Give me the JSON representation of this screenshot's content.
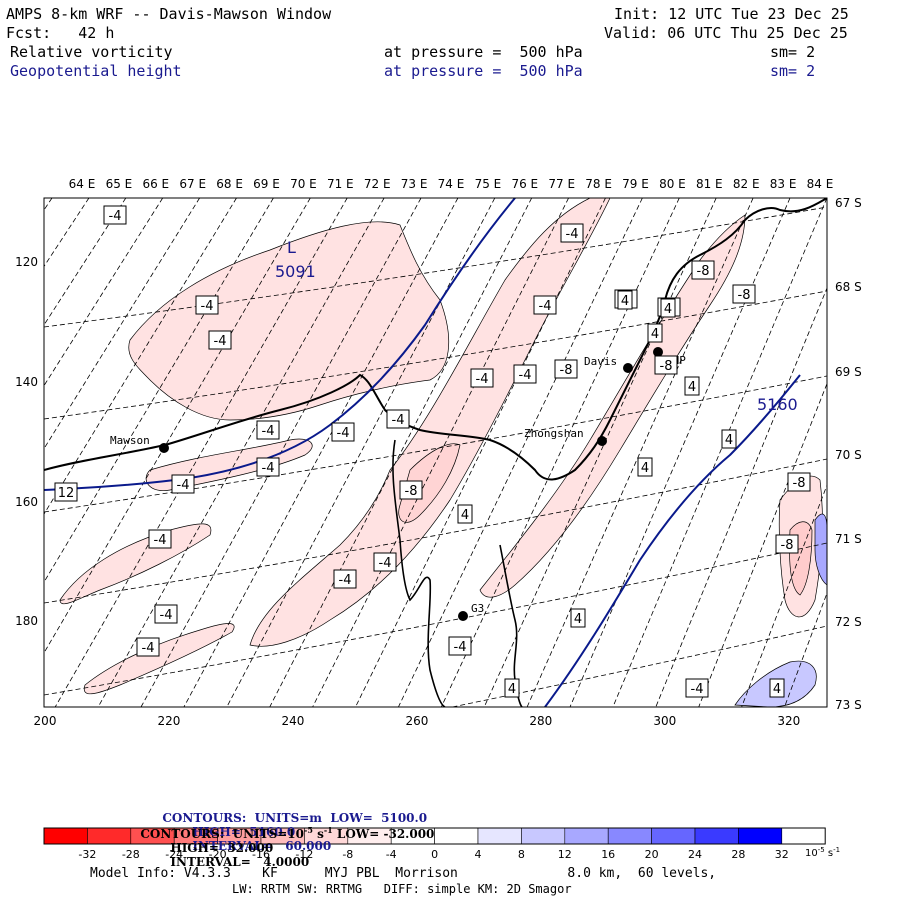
{
  "header": {
    "title": "AMPS 8-km WRF -- Davis-Mawson Window",
    "init": "Init: 12 UTC Tue 23 Dec 25",
    "forecast": "Fcst:   42 h",
    "valid": "Valid: 06 UTC Thu 25 Dec 25",
    "field1": {
      "name": "Relative vorticity",
      "pressure": "at pressure =  500 hPa",
      "sm": "sm= 2"
    },
    "field2": {
      "name": "Geopotential height",
      "pressure": "at pressure =  500 hPa",
      "sm": "sm= 2"
    }
  },
  "colors": {
    "height_contour": "#0a1a8c",
    "coast": "#000000",
    "grid": "#000000"
  },
  "map": {
    "lon_labels": [
      "64 E",
      "65 E",
      "66 E",
      "67 E",
      "68 E",
      "69 E",
      "70 E",
      "71 E",
      "72 E",
      "73 E",
      "74 E",
      "75 E",
      "76 E",
      "77 E",
      "78 E",
      "79 E",
      "80 E",
      "81 E",
      "82 E",
      "83 E",
      "84 E"
    ],
    "lat_labels": [
      "67 S",
      "68 S",
      "69 S",
      "70 S",
      "71 S",
      "72 S",
      "73 S"
    ],
    "x_ticks": [
      "200",
      "220",
      "240",
      "260",
      "280",
      "300",
      "320"
    ],
    "y_ticks": [
      "120",
      "140",
      "160",
      "180"
    ],
    "stations": [
      "Mawson",
      "Davis",
      "Zhongshan",
      "G3",
      "VHP"
    ],
    "height_labels": [
      "5091",
      "5160"
    ],
    "low_marker": "L",
    "vorticity_labels": [
      "-4",
      "-4",
      "-4",
      "-4",
      "-4",
      "-4",
      "-4",
      "-4",
      "-4",
      "-4",
      "-4",
      "-4",
      "-4",
      "-4",
      "-4",
      "-4",
      "-4",
      "-4",
      "-4",
      "-4",
      "-8",
      "-8",
      "-8",
      "-8",
      "-8",
      "-8",
      "-8",
      "-8",
      "4",
      "4",
      "4",
      "4",
      "4",
      "4",
      "4",
      "4",
      "4",
      "4",
      "12"
    ]
  },
  "footer": {
    "contours1": {
      "label": "CONTOURS:  UNITS=m  LOW=  5100.0",
      "high": "HIGH=  5160.0",
      "interval": "INTERVAL=   60.000"
    },
    "contours2": {
      "label": "CONTOURS:  UNITS=10",
      "exp": "-5",
      "unit_tail": " s",
      "unit_exp": "-1",
      "low": " LOW= -32.000",
      "high": "HIGH=  32.000",
      "interval": "INTERVAL=   4.0000"
    },
    "colorbar": {
      "labels": [
        "-32",
        "-28",
        "-24",
        "-20",
        "-16",
        "-12",
        "-8",
        "-4",
        "0",
        "4",
        "8",
        "12",
        "16",
        "20",
        "24",
        "28",
        "32"
      ],
      "colors": [
        "#ff0000",
        "#ff2a2a",
        "#ff5050",
        "#ff7a7a",
        "#ff9e9e",
        "#ffbcbc",
        "#ffd8d8",
        "#ffeeee",
        "#ffffff",
        "#ffffff",
        "#e6e6ff",
        "#c8c8ff",
        "#a8a8ff",
        "#8888ff",
        "#6666ff",
        "#3a3aff",
        "#0000ff"
      ],
      "unit": "10",
      "unit_exp": "-5",
      "unit_tail": " s",
      "unit_tail_exp": "-1"
    },
    "model_info": "Model Info: V4.3.3    KF      MYJ PBL  Morrison              8.0 km,  60 levels,",
    "model_info2": "LW: RRTM SW: RRTMG   DIFF: simple KM: 2D Smagor"
  }
}
